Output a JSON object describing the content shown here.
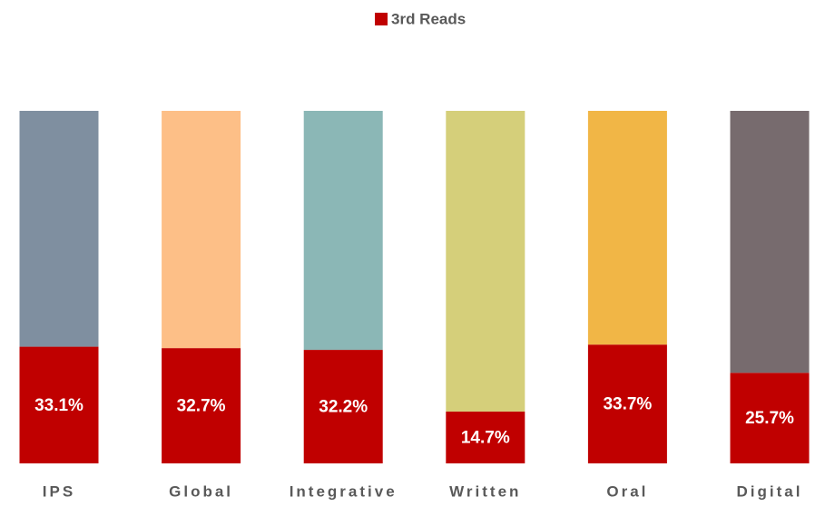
{
  "chart_data": {
    "type": "stacked_bar",
    "categories": [
      "IPS",
      "Global",
      "Integrative",
      "Written",
      "Oral",
      "Digital"
    ],
    "ylim": [
      0,
      100
    ],
    "legend": "top",
    "series": [
      {
        "name": "3rd Reads",
        "color": "#c00000",
        "values": [
          33.1,
          32.7,
          32.2,
          14.7,
          33.7,
          25.7
        ],
        "value_labels": [
          "33.1%",
          "32.7%",
          "32.2%",
          "14.7%",
          "33.7%",
          "25.7%"
        ]
      },
      {
        "colors": [
          "#7f8fa0",
          "#fdbf87",
          "#8bb7b6",
          "#d5cf7a",
          "#f1b646",
          "#776b6e"
        ],
        "values": [
          66.9,
          67.3,
          67.8,
          85.3,
          66.3,
          74.3
        ]
      }
    ]
  }
}
